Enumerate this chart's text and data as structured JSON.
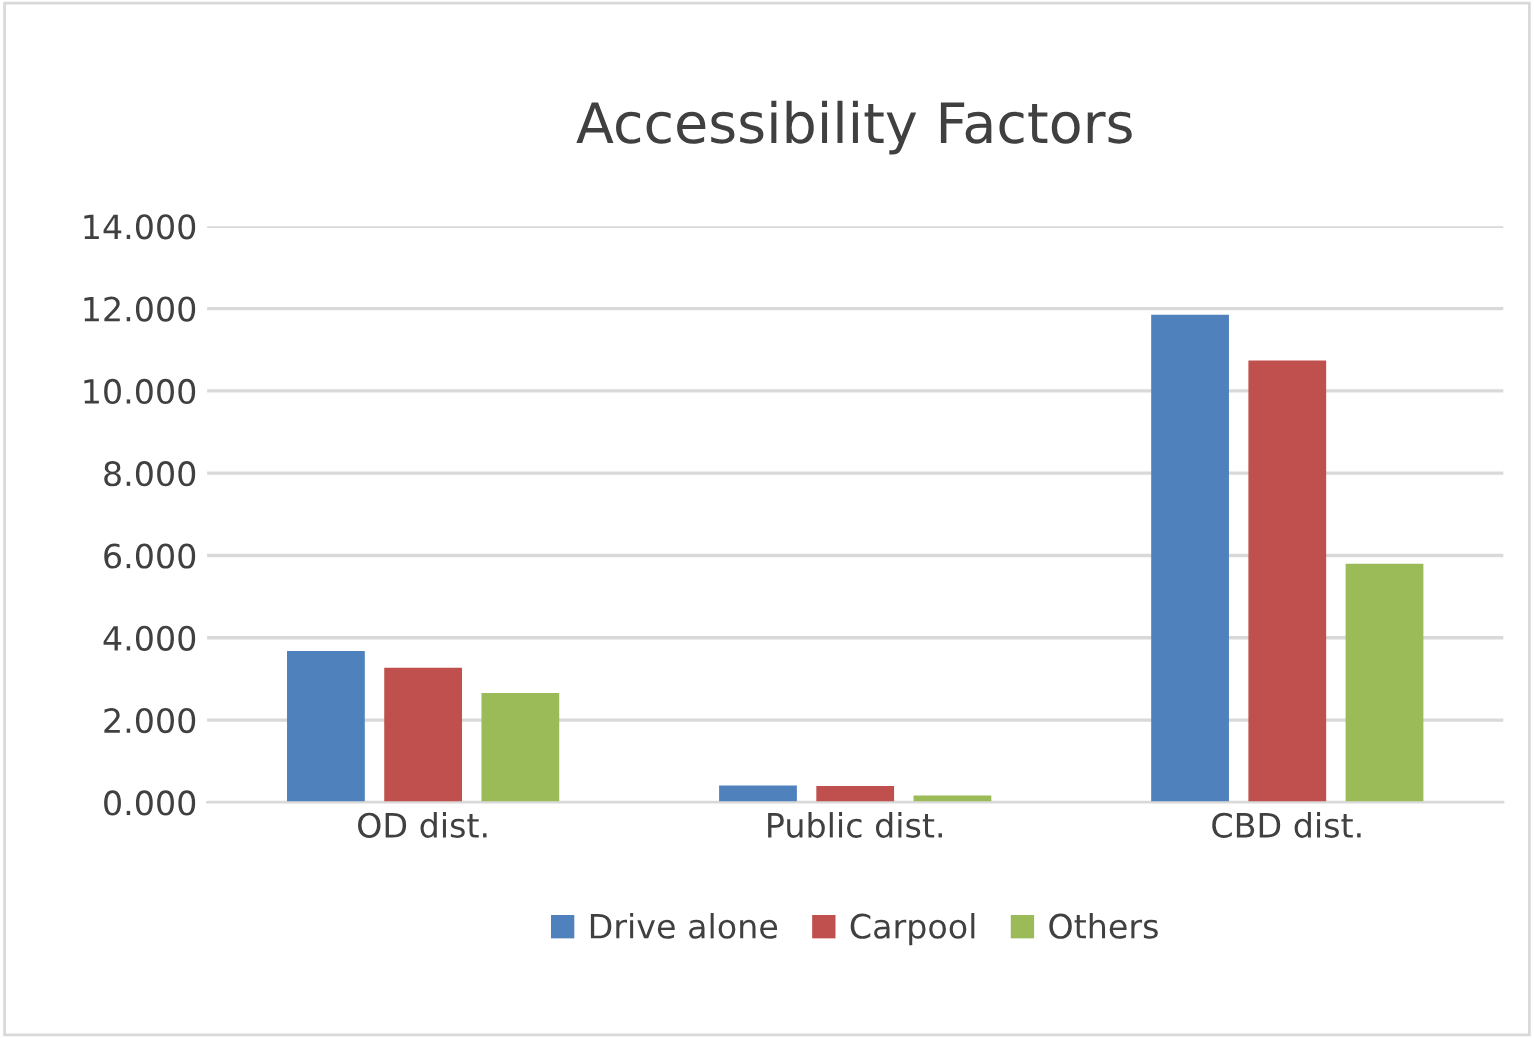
{
  "chart_data": {
    "type": "bar",
    "title": "Accessibility Factors",
    "categories": [
      "OD dist.",
      "Public dist.",
      "CBD dist."
    ],
    "series": [
      {
        "name": "Drive alone",
        "color": "#4f81bd",
        "values": [
          3.68,
          0.41,
          11.85
        ]
      },
      {
        "name": "Carpool",
        "color": "#c0504d",
        "values": [
          3.27,
          0.4,
          10.74
        ]
      },
      {
        "name": "Others",
        "color": "#9bbb59",
        "values": [
          2.66,
          0.17,
          5.8
        ]
      }
    ],
    "ylim": [
      0,
      14
    ],
    "yticks": [
      {
        "value": 0,
        "label": "0.000"
      },
      {
        "value": 2,
        "label": "2.000"
      },
      {
        "value": 4,
        "label": "4.000"
      },
      {
        "value": 6,
        "label": "6.000"
      },
      {
        "value": 8,
        "label": "8.000"
      },
      {
        "value": 10,
        "label": "10.000"
      },
      {
        "value": 12,
        "label": "12.000"
      },
      {
        "value": 14,
        "label": "14.000"
      }
    ],
    "grid": "y",
    "legend": "bottom"
  }
}
